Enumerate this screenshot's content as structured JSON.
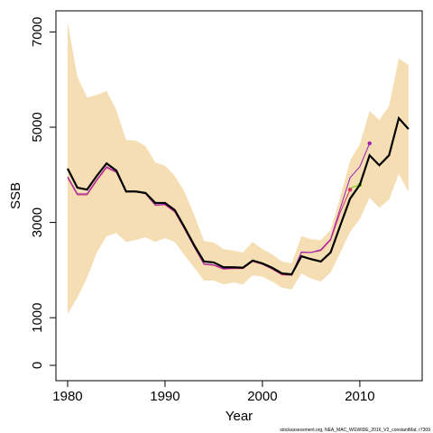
{
  "chart_data": {
    "type": "line",
    "xlabel": "Year",
    "ylabel": "SSB",
    "footnote": "stockassessment.org, NEA_MAC_WGWIDE_2016_V2_constantMat, r7309",
    "xlim": [
      1978.8,
      2016.4
    ],
    "ylim": [
      -322,
      7443
    ],
    "xticks": [
      1980,
      1990,
      2000,
      2010
    ],
    "yticks": [
      0,
      1000,
      3000,
      5000,
      7000
    ],
    "band": {
      "color": "#f5deb3",
      "upper": [
        7200,
        6060,
        5620,
        5680,
        5760,
        5360,
        4730,
        4720,
        4600,
        4260,
        4190,
        3980,
        3640,
        3160,
        2610,
        2580,
        2440,
        2410,
        2370,
        2590,
        2440,
        2330,
        2180,
        2140,
        2710,
        2650,
        2630,
        2840,
        3540,
        4300,
        4640,
        5340,
        5150,
        5440,
        6440,
        6310
      ],
      "lower": [
        1080,
        1420,
        1840,
        2370,
        2710,
        2780,
        2590,
        2630,
        2690,
        2590,
        2670,
        2590,
        2310,
        2050,
        1780,
        1780,
        1700,
        1740,
        1700,
        1890,
        1860,
        1760,
        1630,
        1590,
        1930,
        1820,
        1760,
        1950,
        2370,
        2800,
        3070,
        3520,
        3310,
        3480,
        4020,
        3640
      ]
    },
    "x": [
      1980,
      1981,
      1982,
      1983,
      1984,
      1985,
      1986,
      1987,
      1988,
      1989,
      1990,
      1991,
      1992,
      1993,
      1994,
      1995,
      1996,
      1997,
      1998,
      1999,
      2000,
      2001,
      2002,
      2003,
      2004,
      2005,
      2006,
      2007,
      2008,
      2009,
      2010,
      2011,
      2012,
      2013,
      2014,
      2015
    ],
    "values": [
      4130,
      3730,
      3690,
      3980,
      4240,
      4090,
      3650,
      3650,
      3620,
      3410,
      3410,
      3260,
      2900,
      2520,
      2180,
      2160,
      2060,
      2060,
      2050,
      2200,
      2140,
      2050,
      1930,
      1910,
      2290,
      2230,
      2180,
      2370,
      2940,
      3500,
      3790,
      4410,
      4200,
      4410,
      5190,
      4960
    ],
    "color": "#000000",
    "series": [
      {
        "color": "#d6336c",
        "x": [
          1980,
          1981,
          1982,
          1983,
          1984,
          1985,
          1986,
          1987,
          1988,
          1989,
          1990,
          1991,
          1992,
          1993,
          1994,
          1995,
          1996,
          1997,
          1998,
          1999,
          2000,
          2001,
          2002,
          2003,
          2004,
          2005,
          2006,
          2007,
          2008,
          2009
        ],
        "values": [
          3940,
          3580,
          3580,
          3880,
          4150,
          4050,
          3640,
          3640,
          3600,
          3360,
          3370,
          3220,
          2860,
          2480,
          2120,
          2100,
          2020,
          2030,
          2030,
          2180,
          2120,
          2020,
          1900,
          1890,
          2370,
          2370,
          2410,
          2630,
          3220,
          3690
        ]
      },
      {
        "color": "#9a1fb5",
        "x": [
          1980,
          1981,
          1982,
          1983,
          1984,
          1985,
          1986,
          1987,
          1988,
          1989,
          1990,
          1991,
          1992,
          1993,
          1994,
          1995,
          1996,
          1997,
          1998,
          1999,
          2000,
          2001,
          2002,
          2003,
          2004,
          2005,
          2006,
          2007,
          2008,
          2009,
          2010,
          2011
        ],
        "values": [
          3960,
          3600,
          3600,
          3900,
          4170,
          4060,
          3650,
          3650,
          3610,
          3370,
          3380,
          3230,
          2870,
          2490,
          2130,
          2110,
          2030,
          2040,
          2040,
          2190,
          2130,
          2030,
          1910,
          1900,
          2380,
          2370,
          2430,
          2650,
          3300,
          3940,
          4170,
          4660
        ]
      },
      {
        "color": "#66cc00",
        "x": [
          2009,
          2010
        ],
        "values": [
          3720,
          3790
        ]
      }
    ]
  }
}
